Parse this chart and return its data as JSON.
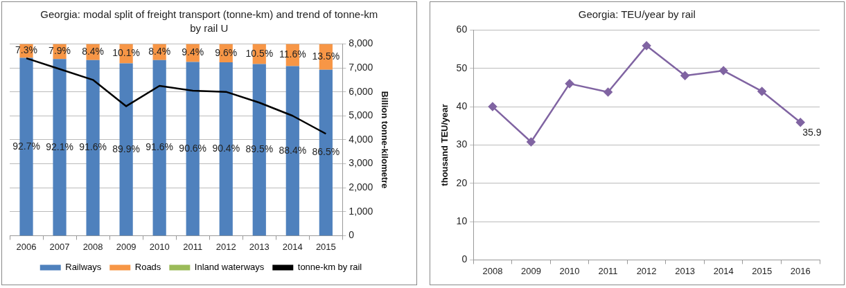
{
  "chart_data": [
    {
      "type": "bar",
      "title": "Georgia: modal split of freight transport (tonne-km) and trend of tonne-km by rail U",
      "y2label": "Billion tonne-kilometre",
      "stacked": true,
      "categories": [
        "2006",
        "2007",
        "2008",
        "2009",
        "2010",
        "2011",
        "2012",
        "2013",
        "2014",
        "2015"
      ],
      "ylim": [
        0,
        100
      ],
      "y2lim": [
        0,
        8000
      ],
      "y2ticks": [
        0,
        {
          "value": 1000,
          "label": "1,000"
        },
        {
          "value": 2000,
          "label": "2,000"
        },
        {
          "value": 3000,
          "label": "3,000"
        },
        {
          "value": 4000,
          "label": "4,000"
        },
        {
          "value": 5000,
          "label": "5,000"
        },
        {
          "value": 6000,
          "label": "6,000"
        },
        {
          "value": 7000,
          "label": "7,000"
        },
        {
          "value": 8000,
          "label": "8,000"
        }
      ],
      "grid": "y",
      "legend": "bottom",
      "series": [
        {
          "name": "Railways",
          "color": "#4f81bd",
          "values": [
            92.7,
            92.1,
            91.6,
            89.9,
            91.6,
            90.6,
            90.4,
            89.5,
            88.4,
            86.5
          ],
          "value_labels": [
            "92.7%",
            "92.1%",
            "91.6%",
            "89.9%",
            "91.6%",
            "90.6%",
            "90.4%",
            "89.5%",
            "88.4%",
            "86.5%"
          ]
        },
        {
          "name": "Roads",
          "color": "#f79646",
          "values": [
            7.3,
            7.9,
            8.4,
            10.1,
            8.4,
            9.4,
            9.6,
            10.5,
            11.6,
            13.5
          ],
          "value_labels": [
            "7.3%",
            "7.9%",
            "8.4%",
            "10.1%",
            "8.4%",
            "9.4%",
            "9.6%",
            "10.5%",
            "11.6%",
            "13.5%"
          ]
        },
        {
          "name": "Inland waterways",
          "color": "#9bbb59",
          "values": [
            0,
            0,
            0,
            0,
            0,
            0,
            0,
            0,
            0,
            0
          ]
        },
        {
          "name": "tonne-km by rail",
          "type": "line",
          "axis": "y2",
          "color": "#000000",
          "marker": "none",
          "values": [
            7400,
            6950,
            6500,
            5400,
            6250,
            6050,
            6000,
            5550,
            5000,
            4250
          ]
        }
      ]
    },
    {
      "type": "line",
      "title": "Georgia: TEU/year by rail",
      "ylabel": "thousand TEU/year",
      "categories": [
        "2008",
        "2009",
        "2010",
        "2011",
        "2012",
        "2013",
        "2014",
        "2015",
        "2016"
      ],
      "ylim": [
        0,
        60
      ],
      "yticks": [
        0,
        10,
        20,
        30,
        40,
        50,
        60
      ],
      "grid": "y",
      "marker": "diamond",
      "series": [
        {
          "color": "#8064a2",
          "values": [
            40,
            30.8,
            46,
            43.8,
            55.9,
            48.1,
            49.4,
            44,
            35.9
          ],
          "value_labels": [
            null,
            null,
            null,
            null,
            null,
            null,
            null,
            null,
            "35.9"
          ]
        }
      ]
    }
  ]
}
